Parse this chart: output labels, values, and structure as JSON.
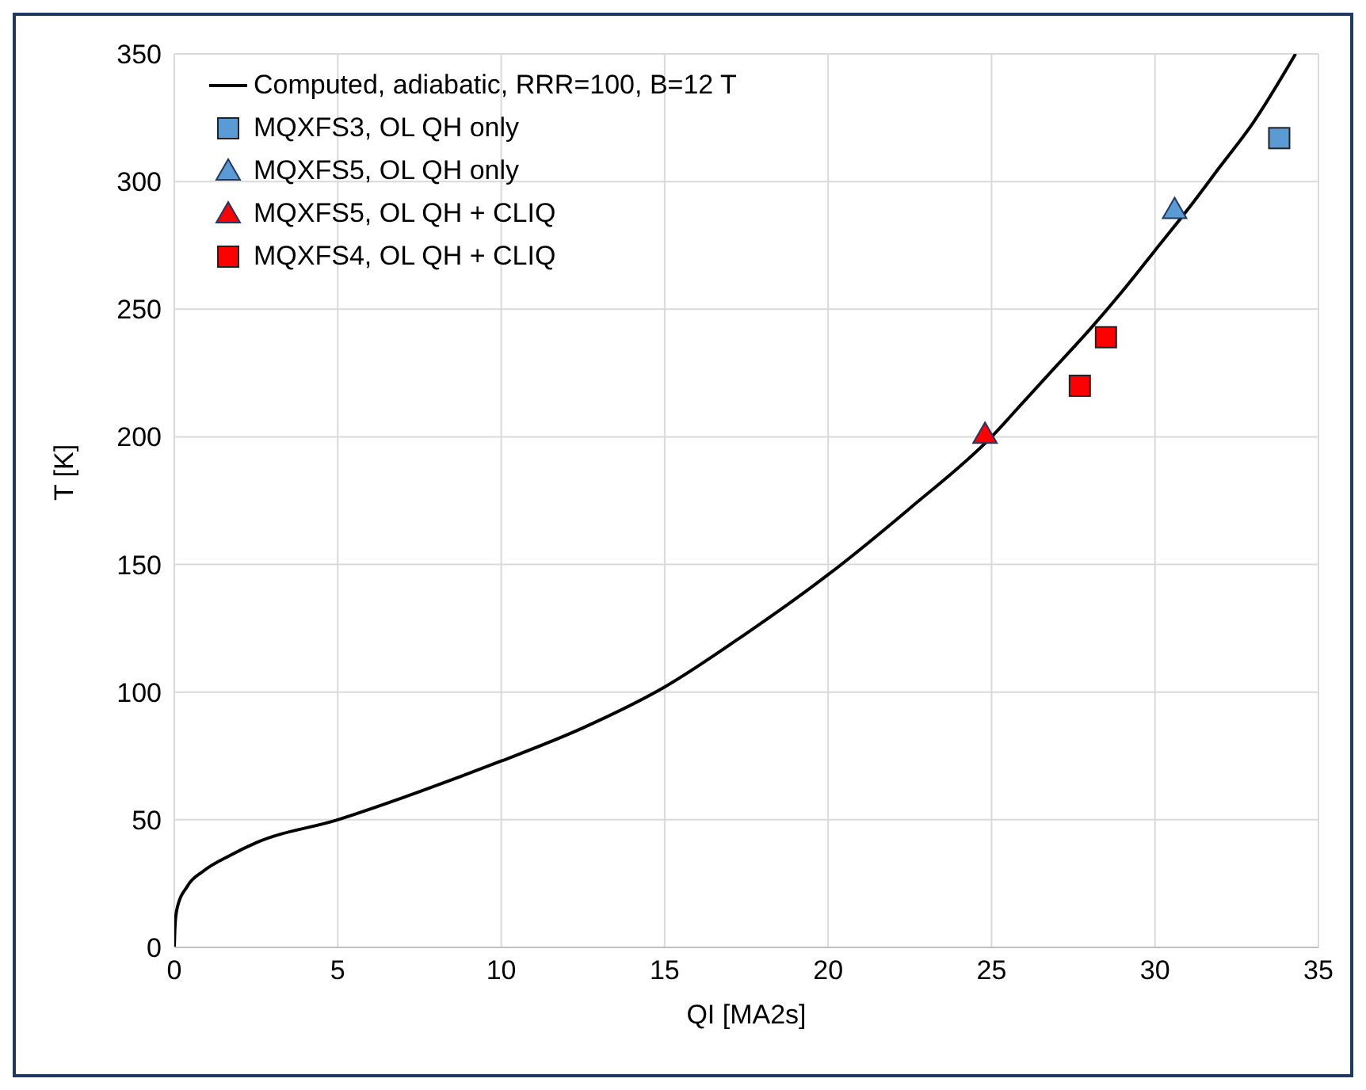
{
  "chart_data": {
    "type": "scatter",
    "xlabel": "QI [MA2s]",
    "ylabel": "T [K]",
    "xlim": [
      0,
      35
    ],
    "xticks": [
      0,
      5,
      10,
      15,
      20,
      25,
      30,
      35
    ],
    "ylim": [
      0,
      350
    ],
    "yticks": [
      0,
      50,
      100,
      150,
      200,
      250,
      300,
      350
    ],
    "grid": true,
    "legend": "top left",
    "series": [
      {
        "name": "Computed, adiabatic, RRR=100, B=12 T",
        "type": "line",
        "color": "#000000",
        "marker": "none",
        "line_style": "solid",
        "x": [
          0,
          0.02,
          0.08,
          0.4,
          0.9,
          1.7,
          2.5,
          5,
          7.5,
          10,
          12.5,
          15,
          17.5,
          20,
          22.5,
          25,
          26,
          27,
          28,
          29,
          30,
          31,
          32,
          33,
          34.3
        ],
        "values": [
          0,
          8,
          15,
          24,
          30,
          36,
          41,
          50,
          61,
          73,
          86,
          102,
          123,
          146,
          172,
          200,
          214,
          228,
          242,
          257,
          273,
          289,
          306,
          323,
          350
        ]
      },
      {
        "name": "MQXFS3, OL QH only",
        "marker": "square",
        "color": "#5b9bd5",
        "x": [
          33.8
        ],
        "values": [
          317
        ]
      },
      {
        "name": "MQXFS5, OL QH only",
        "marker": "triangle",
        "color": "#5b9bd5",
        "x": [
          30.6
        ],
        "values": [
          289
        ]
      },
      {
        "name": "MQXFS5, OL QH + CLIQ",
        "marker": "triangle",
        "color": "#ff0000",
        "x": [
          24.8
        ],
        "values": [
          201
        ]
      },
      {
        "name": "MQXFS4, OL QH + CLIQ",
        "marker": "square",
        "color": "#ff0000",
        "x": [
          27.7,
          28.5
        ],
        "values": [
          220,
          239
        ]
      }
    ]
  }
}
